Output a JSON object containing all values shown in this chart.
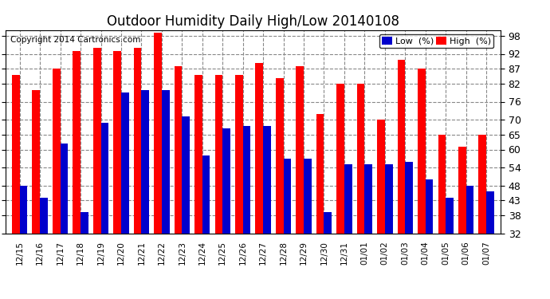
{
  "title": "Outdoor Humidity Daily High/Low 20140108",
  "copyright": "Copyright 2014 Cartronics.com",
  "labels": [
    "12/15",
    "12/16",
    "12/17",
    "12/18",
    "12/19",
    "12/20",
    "12/21",
    "12/22",
    "12/23",
    "12/24",
    "12/25",
    "12/26",
    "12/27",
    "12/28",
    "12/29",
    "12/30",
    "12/31",
    "01/01",
    "01/02",
    "01/03",
    "01/04",
    "01/05",
    "01/06",
    "01/07"
  ],
  "high": [
    85,
    80,
    87,
    93,
    94,
    93,
    94,
    99,
    88,
    85,
    85,
    85,
    89,
    84,
    88,
    72,
    82,
    82,
    70,
    90,
    87,
    65,
    61,
    65
  ],
  "low": [
    48,
    44,
    62,
    39,
    69,
    79,
    80,
    80,
    71,
    58,
    67,
    68,
    68,
    57,
    57,
    39,
    55,
    55,
    55,
    56,
    50,
    44,
    48,
    46
  ],
  "high_color": "#ff0000",
  "low_color": "#0000cc",
  "bg_color": "#ffffff",
  "grid_color": "#888888",
  "ylim_min": 32,
  "ylim_max": 100,
  "yticks": [
    32,
    38,
    43,
    48,
    54,
    60,
    65,
    70,
    76,
    82,
    87,
    92,
    98
  ],
  "bar_width": 0.38,
  "title_fontsize": 12,
  "copyright_fontsize": 7.5,
  "legend_low_label": "Low  (%)",
  "legend_high_label": "High  (%)"
}
